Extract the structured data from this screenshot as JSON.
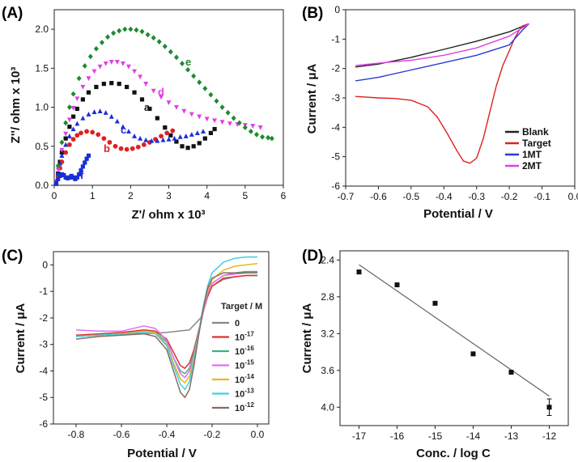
{
  "chart_data": [
    {
      "panel": "(A)",
      "type": "scatter",
      "xlabel": "Z'/ ohm x 10³",
      "ylabel": "Z''/ ohm x 10³",
      "xlim": [
        0,
        6
      ],
      "ylim": [
        0,
        2.25
      ],
      "xticks": [
        "0",
        "1",
        "2",
        "3",
        "4",
        "5",
        "6"
      ],
      "yticks": [
        "0.0",
        "0.5",
        "1.0",
        "1.5",
        "2.0"
      ],
      "series": [
        {
          "name": "a",
          "color": "#111111",
          "marker": "square",
          "x": [
            0.05,
            0.1,
            0.15,
            0.2,
            0.3,
            0.4,
            0.5,
            0.6,
            0.75,
            0.9,
            1.1,
            1.3,
            1.5,
            1.7,
            1.9,
            2.1,
            2.3,
            2.5,
            2.7,
            2.9,
            3.05,
            3.2,
            3.35,
            3.5,
            3.65,
            3.8,
            3.95,
            4.1,
            4.2
          ],
          "y": [
            0.02,
            0.15,
            0.3,
            0.42,
            0.6,
            0.75,
            0.88,
            0.98,
            1.1,
            1.19,
            1.26,
            1.3,
            1.31,
            1.3,
            1.26,
            1.19,
            1.1,
            0.98,
            0.86,
            0.74,
            0.64,
            0.56,
            0.5,
            0.48,
            0.5,
            0.54,
            0.6,
            0.67,
            0.72
          ]
        },
        {
          "name": "b",
          "color": "#e02020",
          "marker": "circle",
          "x": [
            0.05,
            0.1,
            0.15,
            0.2,
            0.3,
            0.4,
            0.5,
            0.6,
            0.7,
            0.85,
            1.0,
            1.15,
            1.3,
            1.45,
            1.6,
            1.75,
            1.9,
            2.05,
            2.2,
            2.35,
            2.5,
            2.65,
            2.8,
            2.95,
            3.1
          ],
          "y": [
            0.02,
            0.12,
            0.22,
            0.3,
            0.42,
            0.52,
            0.59,
            0.64,
            0.67,
            0.69,
            0.68,
            0.65,
            0.6,
            0.55,
            0.5,
            0.47,
            0.46,
            0.47,
            0.49,
            0.52,
            0.55,
            0.59,
            0.63,
            0.67,
            0.7
          ]
        },
        {
          "name": "c",
          "color": "#1a2ed8",
          "marker": "triangle",
          "x": [
            0.05,
            0.1,
            0.15,
            0.2,
            0.3,
            0.4,
            0.5,
            0.6,
            0.75,
            0.9,
            1.05,
            1.2,
            1.35,
            1.5,
            1.65,
            1.8,
            1.95,
            2.1,
            2.25,
            2.4,
            2.55,
            2.7,
            2.85,
            3.0,
            3.15,
            3.3,
            3.45,
            3.6,
            3.75,
            3.9
          ],
          "y": [
            0.02,
            0.15,
            0.28,
            0.38,
            0.52,
            0.63,
            0.72,
            0.79,
            0.86,
            0.91,
            0.94,
            0.95,
            0.93,
            0.88,
            0.82,
            0.75,
            0.69,
            0.63,
            0.6,
            0.58,
            0.57,
            0.57,
            0.58,
            0.59,
            0.6,
            0.62,
            0.63,
            0.65,
            0.67,
            0.69
          ]
        },
        {
          "name": "d",
          "color": "#e040e8",
          "marker": "triangle-down",
          "x": [
            0.05,
            0.1,
            0.2,
            0.3,
            0.4,
            0.5,
            0.6,
            0.75,
            0.9,
            1.05,
            1.2,
            1.35,
            1.5,
            1.65,
            1.8,
            1.95,
            2.1,
            2.25,
            2.4,
            2.6,
            2.8,
            3.0,
            3.2,
            3.4,
            3.6,
            3.8,
            4.0,
            4.2,
            4.4,
            4.6,
            4.8,
            5.0,
            5.2,
            5.4
          ],
          "y": [
            0.05,
            0.2,
            0.45,
            0.66,
            0.84,
            0.99,
            1.11,
            1.26,
            1.37,
            1.46,
            1.52,
            1.56,
            1.58,
            1.58,
            1.56,
            1.52,
            1.46,
            1.39,
            1.3,
            1.21,
            1.13,
            1.06,
            1.0,
            0.95,
            0.91,
            0.88,
            0.85,
            0.83,
            0.81,
            0.79,
            0.78,
            0.77,
            0.76,
            0.74
          ]
        },
        {
          "name": "e",
          "color": "#1e8a2e",
          "marker": "diamond",
          "x": [
            0.05,
            0.1,
            0.2,
            0.3,
            0.4,
            0.5,
            0.65,
            0.8,
            0.95,
            1.1,
            1.25,
            1.4,
            1.55,
            1.7,
            1.85,
            2.0,
            2.15,
            2.3,
            2.45,
            2.6,
            2.75,
            2.9,
            3.05,
            3.2,
            3.35,
            3.5,
            3.65,
            3.8,
            3.95,
            4.1,
            4.25,
            4.4,
            4.55,
            4.7,
            4.85,
            5.0,
            5.15,
            5.3,
            5.45,
            5.6,
            5.7
          ],
          "y": [
            0.05,
            0.25,
            0.55,
            0.8,
            1.0,
            1.17,
            1.37,
            1.53,
            1.65,
            1.75,
            1.83,
            1.9,
            1.95,
            1.98,
            2.0,
            2.0,
            1.99,
            1.97,
            1.93,
            1.89,
            1.84,
            1.78,
            1.71,
            1.64,
            1.56,
            1.48,
            1.4,
            1.32,
            1.24,
            1.16,
            1.08,
            1.0,
            0.93,
            0.86,
            0.8,
            0.74,
            0.69,
            0.65,
            0.62,
            0.61,
            0.6
          ]
        },
        {
          "name": "f",
          "color": "#1a2ed8",
          "marker": "square",
          "x": [
            0.05,
            0.1,
            0.15,
            0.2,
            0.25,
            0.3,
            0.35,
            0.4,
            0.45,
            0.5,
            0.55,
            0.6,
            0.65,
            0.7,
            0.75,
            0.8,
            0.85,
            0.9
          ],
          "y": [
            0.02,
            0.08,
            0.12,
            0.14,
            0.13,
            0.1,
            0.09,
            0.1,
            0.12,
            0.1,
            0.08,
            0.1,
            0.14,
            0.19,
            0.24,
            0.29,
            0.34,
            0.38
          ]
        }
      ],
      "curve_labels": [
        "a",
        "b",
        "c",
        "d",
        "e",
        "f"
      ]
    },
    {
      "panel": "(B)",
      "type": "line",
      "xlabel": "Potential / V",
      "ylabel": "Current / μA",
      "xlim": [
        -0.7,
        0.0
      ],
      "ylim": [
        -6,
        0
      ],
      "xticks": [
        "-0.7",
        "-0.6",
        "-0.5",
        "-0.4",
        "-0.3",
        "-0.2",
        "-0.1",
        "0.0"
      ],
      "yticks": [
        "0",
        "-1",
        "-2",
        "-3",
        "-4",
        "-5",
        "-6"
      ],
      "legend_position": "bottom-right",
      "series": [
        {
          "name": "Blank",
          "color": "#222222",
          "x": [
            -0.67,
            -0.6,
            -0.5,
            -0.4,
            -0.3,
            -0.2,
            -0.14
          ],
          "y": [
            -1.95,
            -1.85,
            -1.62,
            -1.35,
            -1.07,
            -0.75,
            -0.48
          ]
        },
        {
          "name": "Target",
          "color": "#e02020",
          "x": [
            -0.67,
            -0.6,
            -0.55,
            -0.5,
            -0.45,
            -0.42,
            -0.39,
            -0.36,
            -0.34,
            -0.32,
            -0.3,
            -0.28,
            -0.26,
            -0.24,
            -0.22,
            -0.2,
            -0.185,
            -0.17,
            -0.16,
            -0.14
          ],
          "y": [
            -2.95,
            -3.0,
            -3.02,
            -3.08,
            -3.3,
            -3.65,
            -4.2,
            -4.8,
            -5.15,
            -5.22,
            -5.05,
            -4.4,
            -3.5,
            -2.6,
            -1.9,
            -1.4,
            -1.0,
            -0.7,
            -0.55,
            -0.48
          ]
        },
        {
          "name": "1MT",
          "color": "#2a3ad8",
          "x": [
            -0.67,
            -0.6,
            -0.5,
            -0.4,
            -0.3,
            -0.2,
            -0.16,
            -0.14
          ],
          "y": [
            -2.42,
            -2.3,
            -2.05,
            -1.8,
            -1.55,
            -1.2,
            -0.7,
            -0.48
          ]
        },
        {
          "name": "2MT",
          "color": "#e040e8",
          "x": [
            -0.67,
            -0.6,
            -0.5,
            -0.4,
            -0.3,
            -0.2,
            -0.14
          ],
          "y": [
            -1.9,
            -1.82,
            -1.72,
            -1.55,
            -1.3,
            -0.9,
            -0.48
          ]
        }
      ]
    },
    {
      "panel": "(C)",
      "type": "line",
      "xlabel": "Potential / V",
      "ylabel": "Current / μA",
      "xlim": [
        -0.9,
        0.05
      ],
      "ylim": [
        -6,
        0.5
      ],
      "xticks": [
        "-0.8",
        "-0.6",
        "-0.4",
        "-0.2",
        "0.0"
      ],
      "yticks": [
        "0",
        "-1",
        "-2",
        "-3",
        "-4",
        "-5",
        "-6"
      ],
      "legend_title": "Target / M",
      "legend_base": "10",
      "legend_labels": [
        "0",
        "-17",
        "-16",
        "-15",
        "-14",
        "-13",
        "-12"
      ],
      "series": [
        {
          "name": "0",
          "color": "#888888",
          "x": [
            -0.8,
            -0.7,
            -0.6,
            -0.5,
            -0.4,
            -0.35,
            -0.3,
            -0.25,
            -0.22,
            -0.2,
            -0.15,
            -0.1,
            -0.05,
            0.0
          ],
          "y": [
            -2.7,
            -2.65,
            -2.6,
            -2.6,
            -2.55,
            -2.5,
            -2.45,
            -2.0,
            -1.2,
            -0.8,
            -0.55,
            -0.45,
            -0.4,
            -0.4
          ]
        },
        {
          "name": "-17",
          "color": "#e03030",
          "x": [
            -0.8,
            -0.7,
            -0.6,
            -0.5,
            -0.45,
            -0.4,
            -0.37,
            -0.34,
            -0.32,
            -0.3,
            -0.28,
            -0.26,
            -0.24,
            -0.22,
            -0.2,
            -0.15,
            -0.1,
            -0.05,
            0.0
          ],
          "y": [
            -2.65,
            -2.6,
            -2.55,
            -2.45,
            -2.5,
            -2.8,
            -3.3,
            -3.8,
            -3.9,
            -3.7,
            -3.2,
            -2.5,
            -1.8,
            -1.2,
            -0.8,
            -0.5,
            -0.45,
            -0.4,
            -0.4
          ]
        },
        {
          "name": "-16",
          "color": "#40b080",
          "x": [
            -0.8,
            -0.7,
            -0.6,
            -0.5,
            -0.45,
            -0.4,
            -0.37,
            -0.34,
            -0.32,
            -0.3,
            -0.28,
            -0.26,
            -0.24,
            -0.22,
            -0.2,
            -0.15,
            -0.1,
            -0.05,
            0.0
          ],
          "y": [
            -2.7,
            -2.65,
            -2.6,
            -2.5,
            -2.55,
            -2.9,
            -3.5,
            -4.0,
            -4.1,
            -3.9,
            -3.3,
            -2.6,
            -1.8,
            -1.1,
            -0.7,
            -0.4,
            -0.3,
            -0.25,
            -0.25
          ]
        },
        {
          "name": "-15",
          "color": "#e070f0",
          "x": [
            -0.8,
            -0.7,
            -0.6,
            -0.5,
            -0.45,
            -0.4,
            -0.37,
            -0.34,
            -0.32,
            -0.3,
            -0.28,
            -0.26,
            -0.24,
            -0.22,
            -0.2,
            -0.15,
            -0.1,
            -0.05,
            0.0
          ],
          "y": [
            -2.45,
            -2.5,
            -2.5,
            -2.3,
            -2.4,
            -2.85,
            -3.5,
            -4.1,
            -4.25,
            -4.0,
            -3.4,
            -2.6,
            -1.8,
            -1.1,
            -0.7,
            -0.4,
            -0.35,
            -0.3,
            -0.3
          ]
        },
        {
          "name": "-14",
          "color": "#e8b820",
          "x": [
            -0.8,
            -0.7,
            -0.6,
            -0.5,
            -0.45,
            -0.4,
            -0.37,
            -0.34,
            -0.32,
            -0.3,
            -0.28,
            -0.26,
            -0.24,
            -0.22,
            -0.2,
            -0.15,
            -0.1,
            -0.05,
            0.0
          ],
          "y": [
            -2.7,
            -2.65,
            -2.6,
            -2.5,
            -2.55,
            -3.0,
            -3.7,
            -4.3,
            -4.45,
            -4.2,
            -3.5,
            -2.6,
            -1.7,
            -1.0,
            -0.55,
            -0.2,
            -0.05,
            0.0,
            0.05
          ]
        },
        {
          "name": "-13",
          "color": "#40d0e0",
          "x": [
            -0.8,
            -0.7,
            -0.6,
            -0.5,
            -0.45,
            -0.4,
            -0.37,
            -0.34,
            -0.32,
            -0.3,
            -0.28,
            -0.26,
            -0.24,
            -0.22,
            -0.2,
            -0.15,
            -0.1,
            -0.05,
            0.0
          ],
          "y": [
            -2.7,
            -2.65,
            -2.6,
            -2.55,
            -2.6,
            -3.05,
            -3.8,
            -4.5,
            -4.7,
            -4.4,
            -3.6,
            -2.6,
            -1.6,
            -0.8,
            -0.3,
            0.1,
            0.25,
            0.3,
            0.3
          ]
        },
        {
          "name": "-12",
          "color": "#8a6a60",
          "x": [
            -0.8,
            -0.7,
            -0.6,
            -0.5,
            -0.45,
            -0.4,
            -0.37,
            -0.34,
            -0.32,
            -0.3,
            -0.28,
            -0.26,
            -0.24,
            -0.22,
            -0.2,
            -0.15,
            -0.1,
            -0.05,
            0.0
          ],
          "y": [
            -2.8,
            -2.7,
            -2.65,
            -2.6,
            -2.7,
            -3.2,
            -4.0,
            -4.8,
            -5.0,
            -4.7,
            -3.8,
            -2.7,
            -1.7,
            -0.9,
            -0.5,
            -0.3,
            -0.3,
            -0.3,
            -0.3
          ]
        }
      ]
    },
    {
      "panel": "(D)",
      "type": "scatter",
      "xlabel": "Conc. / log C",
      "ylabel": "Current / μA",
      "xlim": [
        -17.5,
        -11.5
      ],
      "ylim": [
        4.2,
        2.3
      ],
      "xticks": [
        "-17",
        "-16",
        "-15",
        "-14",
        "-13",
        "-12"
      ],
      "yticks": [
        "2.4",
        "2.8",
        "3.2",
        "3.6",
        "4.0"
      ],
      "x": [
        -17,
        -16,
        -15,
        -14,
        -13,
        -12
      ],
      "y": [
        2.53,
        2.67,
        2.87,
        3.42,
        3.62,
        4.0
      ],
      "error": [
        0.02,
        0.02,
        0.02,
        0.02,
        0.02,
        0.09
      ],
      "fit": {
        "x": [
          -17,
          -12
        ],
        "y": [
          2.45,
          3.88
        ]
      }
    }
  ]
}
